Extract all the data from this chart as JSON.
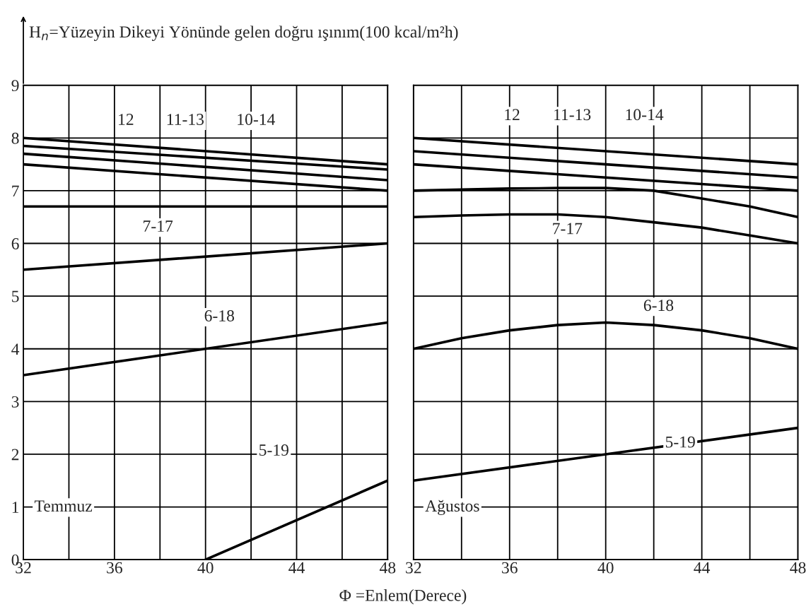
{
  "chart_data": [
    {
      "type": "line",
      "ylabel": "H$_{n}$=Yüzeyin Dikeyi Yönünde gelen doğru ışınım(100 kcal/m²h)",
      "xlabel": "Φ =Enlem(Derece)",
      "xlim": [
        32,
        48
      ],
      "ylim": [
        0,
        9
      ],
      "xticks": [
        32,
        {
          "value": 34,
          "label": null
        },
        36,
        {
          "value": 38,
          "label": null
        },
        40,
        {
          "value": 42,
          "label": null
        },
        44,
        {
          "value": 46,
          "label": null
        },
        48
      ],
      "yticks": [
        0,
        1,
        2,
        3,
        4,
        5,
        6,
        7,
        8,
        9
      ],
      "grid": true,
      "legend": false,
      "marker": "none",
      "line_style": "solid",
      "series": [
        {
          "color": "#000000",
          "x": [
            32,
            48
          ],
          "values": [
            8.0,
            7.5
          ]
        },
        {
          "color": "#000000",
          "x": [
            32,
            48
          ],
          "values": [
            7.85,
            7.4
          ]
        },
        {
          "color": "#000000",
          "x": [
            32,
            48
          ],
          "values": [
            7.7,
            7.2
          ]
        },
        {
          "color": "#000000",
          "x": [
            32,
            48
          ],
          "values": [
            7.5,
            7.0
          ]
        },
        {
          "color": "#000000",
          "x": [
            32,
            48
          ],
          "values": [
            6.7,
            6.7
          ]
        },
        {
          "color": "#000000",
          "x": [
            32,
            48
          ],
          "values": [
            5.5,
            6.0
          ]
        },
        {
          "color": "#000000",
          "x": [
            32,
            48
          ],
          "values": [
            3.5,
            4.5
          ]
        },
        {
          "color": "#000000",
          "x": [
            40,
            48
          ],
          "values": [
            0.0,
            1.5
          ]
        }
      ],
      "annotations": [
        "12",
        "11-13",
        "10-14",
        "7-17",
        "6-18",
        "5-19",
        "Temmuz"
      ]
    },
    {
      "type": "line",
      "xlim": [
        32,
        48
      ],
      "ylim": [
        0,
        9
      ],
      "xticks": [
        32,
        {
          "value": 34,
          "label": null
        },
        36,
        {
          "value": 38,
          "label": null
        },
        40,
        {
          "value": 42,
          "label": null
        },
        44,
        {
          "value": 46,
          "label": null
        },
        48
      ],
      "yticks": [
        0,
        1,
        2,
        3,
        4,
        5,
        6,
        7,
        8,
        9
      ],
      "tick_labels": "x",
      "grid": true,
      "legend": false,
      "marker": "none",
      "line_style": "solid",
      "series": [
        {
          "color": "#000000",
          "x": [
            32,
            48
          ],
          "values": [
            8.0,
            7.5
          ]
        },
        {
          "color": "#000000",
          "x": [
            32,
            48
          ],
          "values": [
            7.75,
            7.25
          ]
        },
        {
          "color": "#000000",
          "x": [
            32,
            48
          ],
          "values": [
            7.5,
            7.0
          ]
        },
        {
          "color": "#000000",
          "x": [
            32,
            34,
            36,
            38,
            40,
            42,
            44,
            46,
            48
          ],
          "values": [
            7.0,
            7.02,
            7.04,
            7.05,
            7.05,
            7.0,
            6.85,
            6.7,
            6.5
          ]
        },
        {
          "color": "#000000",
          "x": [
            32,
            34,
            36,
            38,
            40,
            42,
            44,
            46,
            48
          ],
          "values": [
            6.5,
            6.53,
            6.55,
            6.55,
            6.5,
            6.4,
            6.3,
            6.15,
            6.0
          ]
        },
        {
          "color": "#000000",
          "x": [
            32,
            34,
            36,
            38,
            40,
            42,
            44,
            46,
            48
          ],
          "values": [
            4.0,
            4.2,
            4.35,
            4.45,
            4.5,
            4.45,
            4.35,
            4.2,
            4.0
          ]
        },
        {
          "color": "#000000",
          "x": [
            32,
            48
          ],
          "values": [
            1.5,
            2.5
          ]
        }
      ],
      "annotations": [
        "12",
        "11-13",
        "10-14",
        "7-17",
        "6-18",
        "5-19",
        "Ağustos"
      ]
    }
  ]
}
